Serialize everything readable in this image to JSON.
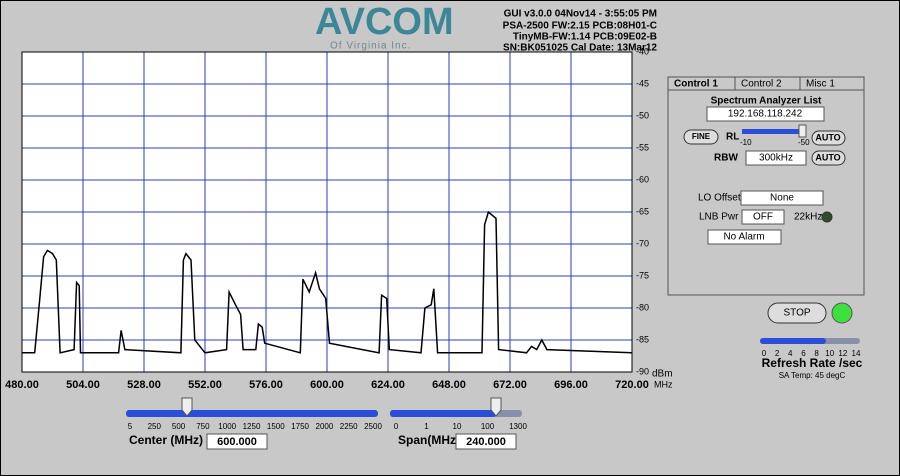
{
  "header": {
    "logo": "AVCOM",
    "logo_sub": "Of Virginia Inc.",
    "info": [
      "GUI v3.0.0  04Nov14 - 3:55:05 PM",
      "PSA-2500 FW:2.15 PCB:08H01-C",
      "TinyMB-FW:1.14  PCB:09E02-B",
      "SN:BK051025  Cal Date: 13Mar12"
    ]
  },
  "chart_data": {
    "type": "line",
    "x_unit": "MHz",
    "y_unit": "dBm",
    "series": [
      {
        "color": "#000000",
        "x": [
          480,
          485,
          487,
          488.5,
          490,
          492,
          493.5,
          495,
          500.5,
          501.5,
          502.5,
          503,
          518,
          519,
          520.5,
          542.5,
          543.5,
          544.5,
          546.5,
          548,
          552,
          560.5,
          561.5,
          564,
          566,
          567,
          572,
          573,
          574.5,
          575.5,
          589.5,
          590.5,
          593,
          595.5,
          597,
          599.5,
          601,
          620.5,
          621.5,
          623.5,
          624.5,
          637,
          638.5,
          641,
          642,
          643.5,
          661,
          662,
          663.5,
          666.5,
          667.5,
          678.5,
          680.5,
          682.5,
          684.5,
          686.5,
          720
        ],
        "values": [
          -87,
          -87,
          -78.5,
          -72,
          -71,
          -71.5,
          -72.5,
          -87,
          -86.5,
          -76,
          -76.5,
          -87,
          -87,
          -83.5,
          -86.5,
          -87,
          -72.5,
          -71.5,
          -72.5,
          -85,
          -87,
          -86.5,
          -77.5,
          -79.5,
          -81,
          -86.5,
          -86.5,
          -82.5,
          -83,
          -85.5,
          -87,
          -75.5,
          -77.5,
          -74.5,
          -77,
          -78.5,
          -85.5,
          -87,
          -78,
          -78.5,
          -86.5,
          -87,
          -80,
          -79.5,
          -77,
          -87,
          -87,
          -67,
          -65,
          -66,
          -86.5,
          -87,
          -86,
          -86.5,
          -85,
          -86.5,
          -87
        ]
      }
    ],
    "xlim": [
      480,
      720
    ],
    "xticks": [
      {
        "value": 480,
        "label": "480.00"
      },
      {
        "value": 504,
        "label": "504.00"
      },
      {
        "value": 528,
        "label": "528.00"
      },
      {
        "value": 552,
        "label": "552.00"
      },
      {
        "value": 576,
        "label": "576.00"
      },
      {
        "value": 600,
        "label": "600.00"
      },
      {
        "value": 624,
        "label": "624.00"
      },
      {
        "value": 648,
        "label": "648.00"
      },
      {
        "value": 672,
        "label": "672.00"
      },
      {
        "value": 696,
        "label": "696.00"
      },
      {
        "value": 720,
        "label": "720.00"
      }
    ],
    "ylim": [
      -90,
      -40
    ],
    "yticks": [
      -40,
      -45,
      -50,
      -55,
      -60,
      -65,
      -70,
      -75,
      -80,
      -85,
      -90
    ],
    "grid": true,
    "grid_color": "#2a3fc0"
  },
  "panel": {
    "tabs": [
      "Control 1",
      "Control 2",
      "Misc 1"
    ],
    "list_label": "Spectrum Analyzer List",
    "ip": "192.168.118.242",
    "fine": "FINE",
    "rl": "RL",
    "rl_min": "-10",
    "rl_max": "-50",
    "auto": "AUTO",
    "rbw": "RBW",
    "rbw_value": "300kHz",
    "lo_offset": "LO Offset",
    "lo_value": "None",
    "lnb": "LNB Pwr",
    "lnb_value": "OFF",
    "khz": "22kHz",
    "alarm": "No Alarm"
  },
  "stop": "STOP",
  "refresh": {
    "ticks": [
      "0",
      "2",
      "4",
      "6",
      "8",
      "10",
      "12",
      "14"
    ],
    "label": "Refresh Rate /sec",
    "temp": "SA Temp: 45 degC"
  },
  "center": {
    "ticks": [
      "5",
      "250",
      "500",
      "750",
      "1000",
      "1250",
      "1500",
      "1750",
      "2000",
      "2250",
      "2500"
    ],
    "label": "Center (MHz)",
    "value": "600.000"
  },
  "span": {
    "ticks": [
      "0",
      "1",
      "10",
      "100",
      "1300"
    ],
    "label": "Span(MHz)",
    "value": "240.000"
  }
}
